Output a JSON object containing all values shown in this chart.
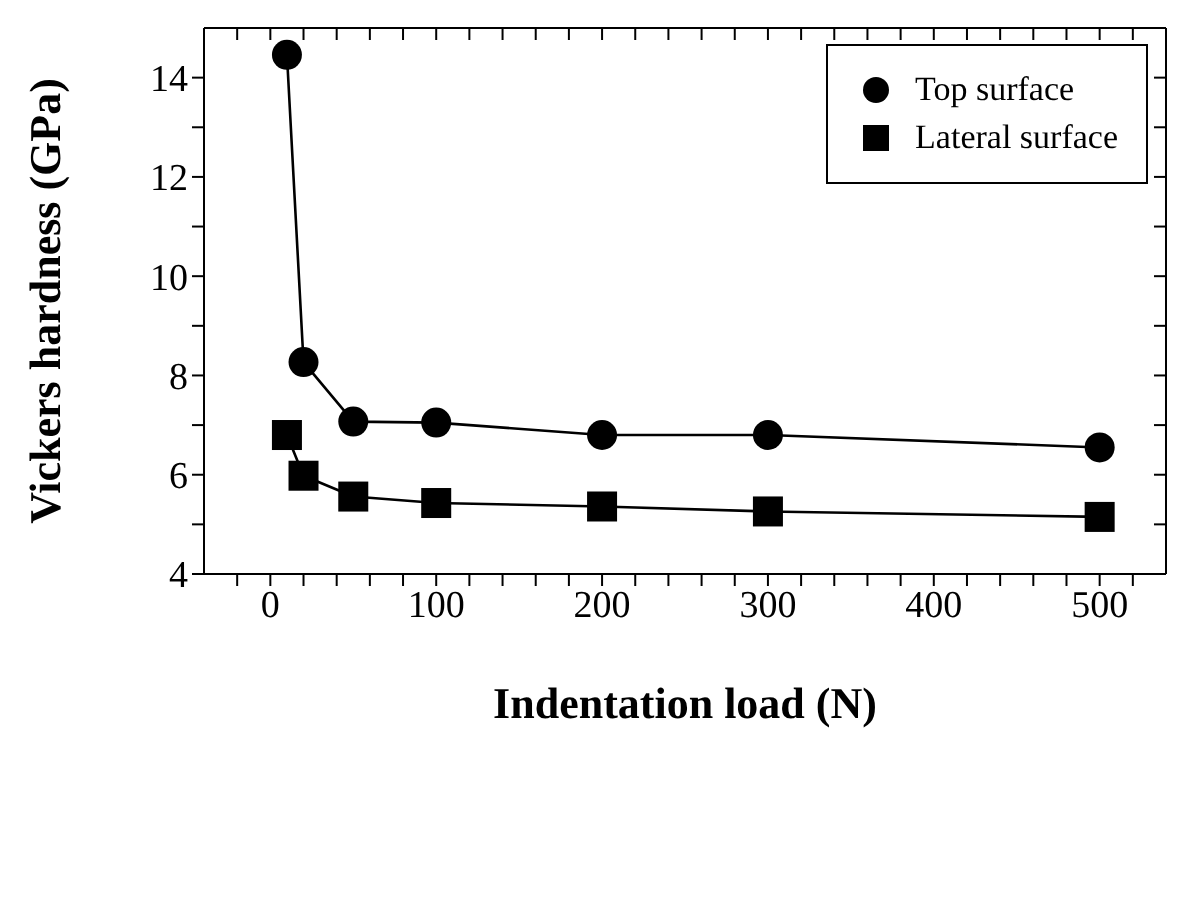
{
  "chart_data": {
    "type": "line",
    "xlabel": "Indentation load (N)",
    "ylabel": "Vickers hardness (GPa)",
    "xlim": [
      -40,
      540
    ],
    "xticks": [
      {
        "value": -20,
        "label": null
      },
      0,
      {
        "value": 20,
        "label": null
      },
      {
        "value": 40,
        "label": null
      },
      {
        "value": 60,
        "label": null
      },
      {
        "value": 80,
        "label": null
      },
      100,
      {
        "value": 120,
        "label": null
      },
      {
        "value": 140,
        "label": null
      },
      {
        "value": 160,
        "label": null
      },
      {
        "value": 180,
        "label": null
      },
      200,
      {
        "value": 220,
        "label": null
      },
      {
        "value": 240,
        "label": null
      },
      {
        "value": 260,
        "label": null
      },
      {
        "value": 280,
        "label": null
      },
      300,
      {
        "value": 320,
        "label": null
      },
      {
        "value": 340,
        "label": null
      },
      {
        "value": 360,
        "label": null
      },
      {
        "value": 380,
        "label": null
      },
      400,
      {
        "value": 420,
        "label": null
      },
      {
        "value": 440,
        "label": null
      },
      {
        "value": 460,
        "label": null
      },
      {
        "value": 480,
        "label": null
      },
      500,
      {
        "value": 520,
        "label": null
      }
    ],
    "ylim": [
      4,
      15
    ],
    "yticks": [
      4,
      {
        "value": 5,
        "label": null
      },
      6,
      {
        "value": 7,
        "label": null
      },
      8,
      {
        "value": 9,
        "label": null
      },
      10,
      {
        "value": 11,
        "label": null
      },
      12,
      {
        "value": 13,
        "label": null
      },
      14
    ],
    "x": [
      10,
      20,
      50,
      100,
      200,
      300,
      500
    ],
    "series": [
      {
        "name": "Top surface",
        "color": "#000000",
        "marker": "circle",
        "values": [
          14.46,
          8.27,
          7.07,
          7.05,
          6.8,
          6.8,
          6.55
        ]
      },
      {
        "name": "Lateral surface",
        "color": "#000000",
        "marker": "square",
        "values": [
          6.8,
          5.98,
          5.56,
          5.43,
          5.36,
          5.26,
          5.15
        ]
      }
    ],
    "legend": "top right",
    "line_style": "solid"
  }
}
